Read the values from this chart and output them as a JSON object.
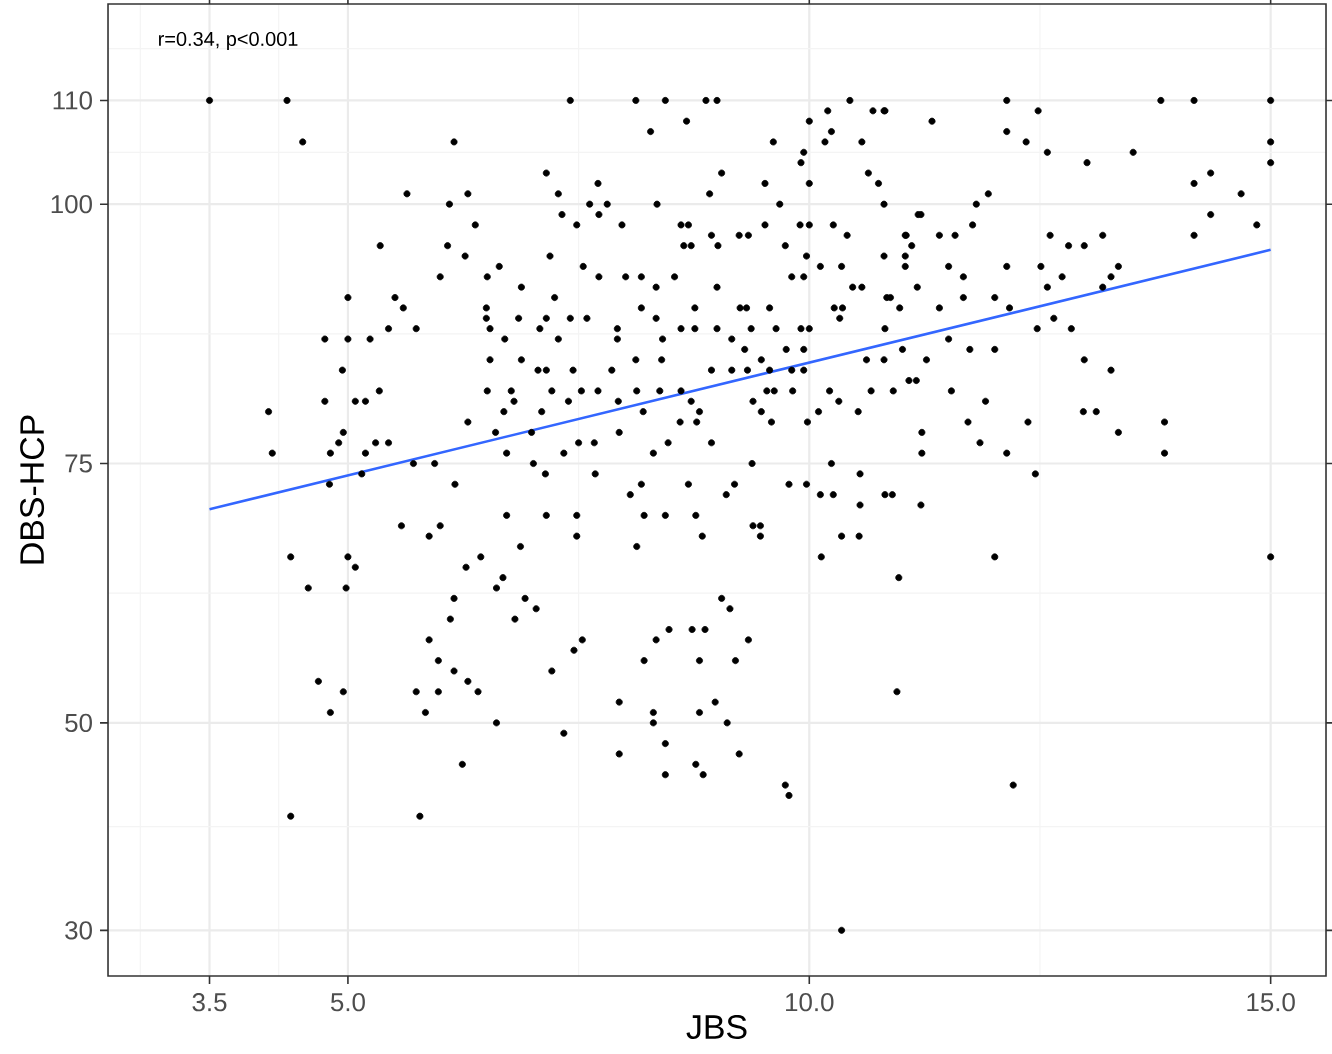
{
  "chart_data": {
    "type": "scatter",
    "xlabel": "JBS",
    "ylabel": "DBS-HCP",
    "annotations": [
      "r=0.34, p<0.001"
    ],
    "xlim": [
      2.4,
      15.6
    ],
    "ylim": [
      25.6,
      119.3
    ],
    "xticks": [
      {
        "value": 3.5,
        "label": "3.5"
      },
      {
        "value": 5,
        "label": "5.0"
      },
      {
        "value": 10,
        "label": "10.0"
      },
      {
        "value": 15,
        "label": "15.0"
      }
    ],
    "yticks": [
      30,
      50,
      75,
      100,
      110
    ],
    "grid": true,
    "series": [
      {
        "marker": "circle",
        "color": "#000000",
        "x": [
          3.5,
          4.34,
          4.51,
          6.15,
          5.64,
          6.1,
          6.3,
          6.38,
          5.35,
          6.08,
          6.27,
          6.0,
          6.64,
          6.51,
          5.0,
          5.44,
          5.51,
          5.6,
          4.75,
          5.0,
          5.24,
          5.74,
          4.94,
          4.75,
          5.08,
          5.19,
          5.34,
          4.14,
          4.18,
          4.95,
          4.9,
          4.81,
          5.19,
          5.3,
          5.44,
          4.8,
          5.15,
          5.71,
          5.94,
          6.16,
          6.3,
          6.51,
          6.8,
          4.38,
          4.57,
          5.0,
          5.08,
          4.98,
          4.68,
          4.95,
          4.81,
          4.38,
          5.78,
          5.74,
          5.84,
          5.88,
          5.98,
          5.98,
          6.15,
          6.3,
          6.41,
          6.61,
          6.24,
          6.11,
          6.15,
          6.28,
          6.44,
          6.61,
          6.68,
          6.81,
          5.58,
          5.88,
          6.0,
          7.34,
          7.21,
          7.45,
          7.54,
          7.04,
          6.92,
          7.94,
          7.94,
          8.21,
          8.34,
          8.48,
          8.31,
          8.31,
          8.44,
          8.44,
          8.73,
          8.87,
          8.81,
          8.81,
          8.98,
          8.77,
          8.85,
          9.11,
          9.24,
          9.2,
          9.34,
          9.05,
          9.14,
          9.74,
          9.78,
          10.35,
          10.95,
          10.97,
          10.13,
          10.35,
          10.54,
          9.47,
          12.01,
          15.0,
          12.21,
          13.81,
          14.17,
          15.0,
          15.0,
          15.0,
          14.17,
          14.35,
          14.68,
          14.35,
          14.85,
          14.17,
          13.51,
          13.01,
          12.58,
          12.35,
          12.14,
          12.48,
          12.14,
          11.33,
          10.82,
          11.94,
          11.81,
          11.77,
          11.21,
          12.61,
          12.81,
          12.98,
          13.18,
          13.35,
          13.27,
          12.74,
          12.51,
          12.58,
          12.14,
          11.51,
          11.67,
          11.67,
          12.01,
          12.17,
          12.47,
          12.65,
          12.84,
          13.18,
          12.98,
          13.27,
          12.97,
          13.11,
          13.35,
          13.85,
          13.85,
          12.37,
          12.14,
          12.45,
          11.85,
          11.91,
          11.72,
          11.54,
          11.22,
          11.22,
          11.21,
          10.82,
          10.9,
          10.91,
          11.08,
          11.16,
          11.27,
          11.01,
          11.51,
          11.74,
          12.01,
          11.41,
          10.98,
          10.88,
          11.17,
          11.04,
          11.04,
          11.11,
          11.04,
          11.41,
          11.58,
          7.41,
          8.12,
          8.44,
          8.88,
          9.0,
          8.67,
          8.28,
          9.61,
          10.0,
          10.2,
          10.44,
          10.69,
          10.81,
          10.24,
          10.17,
          10.57,
          9.94,
          9.91,
          7.15,
          7.28,
          7.71,
          7.62,
          7.81,
          7.72,
          7.48,
          7.32,
          8.35,
          7.97,
          9.05,
          8.92,
          9.52,
          9.68,
          10.0,
          10.64,
          10.75,
          10.81,
          11.18,
          8.61,
          8.69,
          8.64,
          8.72,
          8.94,
          9.01,
          9.24,
          9.34,
          9.52,
          9.74,
          9.9,
          10.0,
          10.26,
          10.41,
          9.97,
          10.12,
          10.35,
          10.81,
          11.05,
          7.19,
          7.55,
          7.72,
          8.01,
          8.18,
          8.54,
          9.0,
          9.81,
          9.94,
          10.57,
          10.47,
          6.88,
          7.24,
          8.34,
          8.76,
          9.25,
          9.32,
          9.57,
          10.27,
          10.36,
          10.84,
          6.85,
          7.08,
          7.15,
          7.41,
          7.59,
          7.92,
          8.18,
          8.34,
          8.61,
          8.76,
          9.0,
          9.37,
          9.64,
          9.91,
          10.0,
          10.33,
          10.82,
          8.41,
          9.16,
          9.3,
          9.75,
          9.94,
          7.28,
          6.7,
          6.54,
          6.5,
          6.5,
          6.88,
          7.92,
          8.12,
          8.4,
          6.54,
          7.06,
          7.15,
          7.44,
          7.86,
          8.94,
          9.16,
          9.33,
          9.48,
          9.57,
          9.81,
          9.94,
          10.62,
          10.81,
          6.77,
          7.21,
          7.53,
          7.71,
          8.13,
          8.38,
          8.61,
          9.54,
          9.62,
          9.82,
          10.22,
          10.67,
          6.69,
          7.1,
          7.39,
          7.93,
          8.2,
          8.72,
          8.81,
          9.39,
          9.48,
          10.1,
          10.32,
          10.53,
          6.6,
          6.99,
          7.5,
          7.67,
          8.6,
          8.78,
          9.59,
          9.98,
          6.72,
          7.34,
          7.94,
          8.31,
          8.47,
          8.94,
          9.38,
          10.24,
          10.55,
          7.01,
          7.14,
          7.68,
          8.18,
          8.69,
          9.19,
          9.78,
          9.97,
          10.12,
          10.26,
          8.06,
          9.1,
          6.72,
          7.15,
          7.48,
          8.21,
          8.44,
          8.77,
          10.55,
          9.39,
          6.87,
          7.48,
          8.13,
          8.84,
          9.47
        ],
        "values": [
          110,
          110,
          106,
          106,
          101,
          100,
          101,
          98,
          96,
          96,
          95,
          93,
          94,
          93,
          91,
          88,
          91,
          90,
          87,
          87,
          87,
          88,
          84,
          81,
          81,
          81,
          82,
          80,
          76,
          78,
          77,
          76,
          76,
          77,
          77,
          73,
          74,
          75,
          75,
          73,
          79,
          82,
          81,
          66,
          63,
          66,
          65,
          63,
          54,
          53,
          51,
          41,
          41,
          53,
          51,
          58,
          56,
          53,
          55,
          54,
          53,
          50,
          46,
          60,
          62,
          65,
          66,
          63,
          64,
          60,
          69,
          68,
          69,
          49,
          55,
          57,
          58,
          61,
          62,
          52,
          47,
          56,
          58,
          59,
          51,
          50,
          48,
          45,
          59,
          59,
          56,
          51,
          52,
          46,
          45,
          50,
          47,
          56,
          58,
          62,
          61,
          44,
          43,
          30,
          53,
          64,
          66,
          68,
          68,
          69,
          66,
          66,
          44,
          110,
          110,
          110,
          106,
          104,
          102,
          103,
          101,
          99,
          98,
          97,
          105,
          104,
          105,
          106,
          110,
          109,
          107,
          108,
          109,
          101,
          100,
          98,
          99,
          97,
          96,
          96,
          97,
          94,
          93,
          93,
          94,
          92,
          94,
          94,
          93,
          91,
          91,
          90,
          88,
          89,
          88,
          92,
          85,
          84,
          80,
          80,
          78,
          79,
          76,
          79,
          76,
          74,
          77,
          81,
          79,
          82,
          78,
          76,
          71,
          72,
          72,
          82,
          83,
          83,
          85,
          86,
          87,
          86,
          86,
          90,
          90,
          91,
          92,
          95,
          94,
          96,
          97,
          97,
          97,
          110,
          110,
          110,
          110,
          110,
          108,
          107,
          106,
          108,
          109,
          110,
          109,
          109,
          107,
          106,
          106,
          105,
          104,
          103,
          101,
          102,
          100,
          100,
          99,
          98,
          99,
          100,
          98,
          103,
          101,
          102,
          100,
          102,
          103,
          102,
          100,
          99,
          98,
          98,
          96,
          96,
          97,
          96,
          97,
          97,
          98,
          96,
          98,
          98,
          98,
          97,
          95,
          94,
          94,
          95,
          97,
          95,
          94,
          93,
          93,
          93,
          93,
          92,
          93,
          93,
          92,
          92,
          92,
          91,
          92,
          90,
          90,
          90,
          90,
          90,
          90,
          91,
          89,
          88,
          89,
          89,
          89,
          88,
          90,
          89,
          88,
          88,
          88,
          88,
          88,
          88,
          88,
          89,
          88,
          87,
          87,
          86,
          86,
          86,
          87,
          87,
          88,
          89,
          90,
          85,
          87,
          85,
          85,
          85,
          84,
          84,
          84,
          84,
          84,
          84,
          84,
          85,
          84,
          84,
          84,
          85,
          85,
          82,
          82,
          82,
          82,
          82,
          82,
          82,
          82,
          82,
          82,
          82,
          82,
          80,
          80,
          81,
          81,
          80,
          81,
          80,
          81,
          80,
          80,
          81,
          80,
          78,
          78,
          77,
          77,
          79,
          79,
          79,
          79,
          76,
          76,
          78,
          76,
          77,
          77,
          75,
          75,
          74,
          75,
          74,
          74,
          73,
          73,
          73,
          73,
          73,
          72,
          72,
          72,
          72,
          70,
          70,
          70,
          70,
          70,
          70,
          71,
          69,
          67,
          68,
          67,
          68,
          68
        ]
      },
      {
        "type": "line",
        "marker": "none",
        "color": "#3366ff",
        "x": [
          3.5,
          15
        ],
        "values": [
          70.6,
          95.6
        ]
      }
    ]
  }
}
